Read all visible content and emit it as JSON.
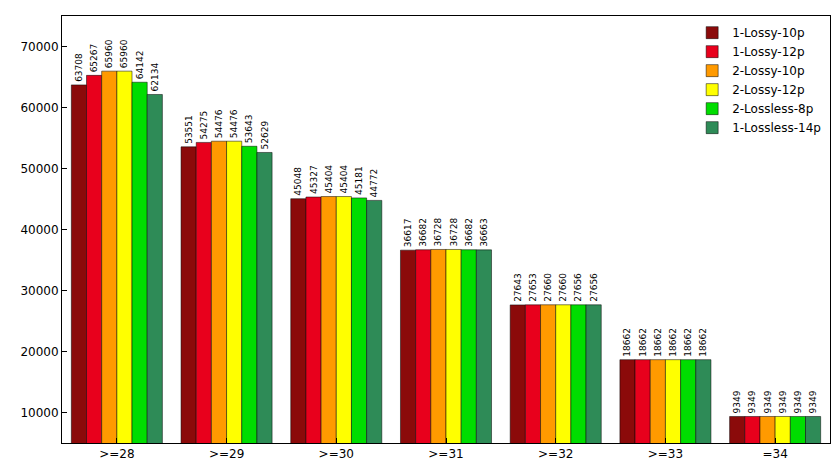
{
  "chart_data": {
    "type": "bar",
    "categories": [
      ">=28",
      ">=29",
      ">=30",
      ">=31",
      ">=32",
      ">=33",
      "=34"
    ],
    "series": [
      {
        "name": "1-Lossy-10p",
        "color": "#8b0a0a",
        "values": [
          63708,
          53551,
          45048,
          36617,
          27643,
          18662,
          9349
        ]
      },
      {
        "name": "1-Lossy-12p",
        "color": "#e8001c",
        "values": [
          65267,
          54275,
          45327,
          36682,
          27653,
          18662,
          9349
        ]
      },
      {
        "name": "2-Lossy-10p",
        "color": "#ff9a00",
        "values": [
          65960,
          54476,
          45404,
          36728,
          27660,
          18662,
          9349
        ]
      },
      {
        "name": "2-Lossy-12p",
        "color": "#ffff00",
        "values": [
          65960,
          54476,
          45404,
          36728,
          27660,
          18662,
          9349
        ]
      },
      {
        "name": "2-Lossless-8p",
        "color": "#00dd00",
        "values": [
          64142,
          53643,
          45181,
          36682,
          27656,
          18662,
          9349
        ]
      },
      {
        "name": "1-Lossless-14p",
        "color": "#2e8b57",
        "values": [
          62134,
          52629,
          44772,
          36663,
          27656,
          18662,
          9349
        ]
      }
    ],
    "ylim": [
      5000,
      75000
    ],
    "yticks": [
      10000,
      20000,
      30000,
      40000,
      50000,
      60000,
      70000
    ],
    "grid": false,
    "legend": "top right",
    "data_labels": true
  }
}
